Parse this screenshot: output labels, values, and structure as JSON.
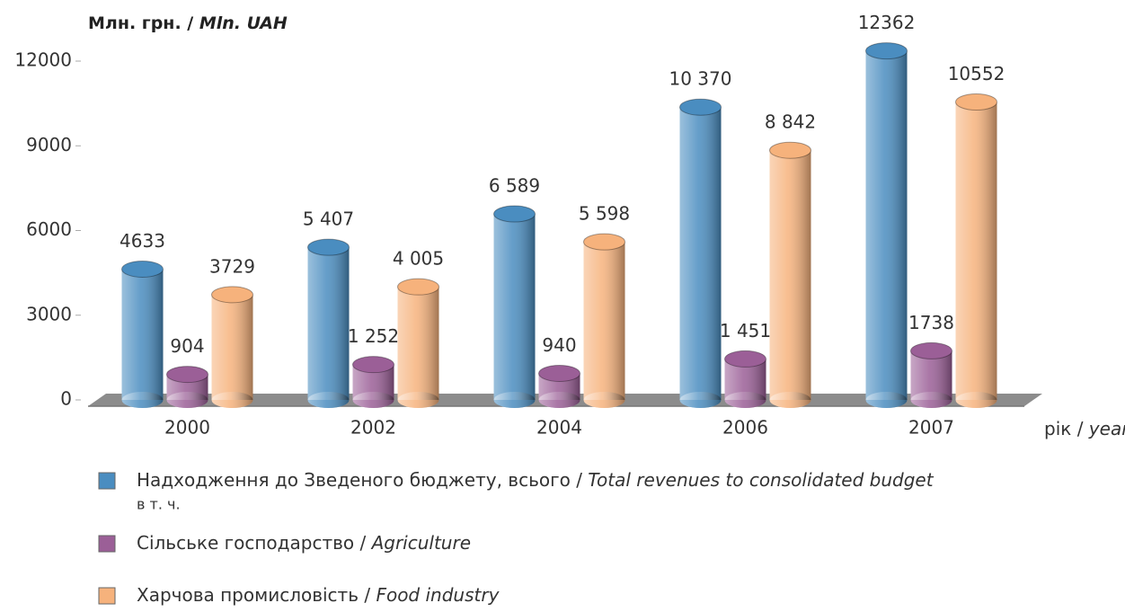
{
  "chart_data": {
    "type": "bar",
    "y_label_parts": [
      "Млн. грн. /",
      "Mln. UAH"
    ],
    "x_label_parts": [
      "рік /",
      "year"
    ],
    "categories": [
      "2000",
      "2002",
      "2004",
      "2006",
      "2007"
    ],
    "series": [
      {
        "name": "Надходження до Зведеного бюджету, всього / Total revenues to consolidated budget",
        "name_note": "в т. ч.",
        "color": "#4a8dc0",
        "values": [
          4633,
          5407,
          6589,
          10370,
          12362
        ],
        "value_labels": [
          "4633",
          "5 407",
          "6 589",
          "10 370",
          "12362"
        ]
      },
      {
        "name": "Сільське господарство / Agriculture",
        "color": "#9b5f97",
        "values": [
          904,
          1252,
          940,
          1451,
          1738
        ],
        "value_labels": [
          "904",
          "1 252",
          "940",
          "1 451",
          "1738"
        ]
      },
      {
        "name": "Харчова промисловість / Food industry",
        "color": "#f6b27c",
        "values": [
          3729,
          4005,
          5598,
          8842,
          10552
        ],
        "value_labels": [
          "3729",
          "4 005",
          "5 598",
          "8 842",
          "10552"
        ]
      }
    ],
    "ylim": [
      0,
      12000
    ],
    "yticks": [
      0,
      3000,
      6000,
      9000,
      12000
    ]
  }
}
